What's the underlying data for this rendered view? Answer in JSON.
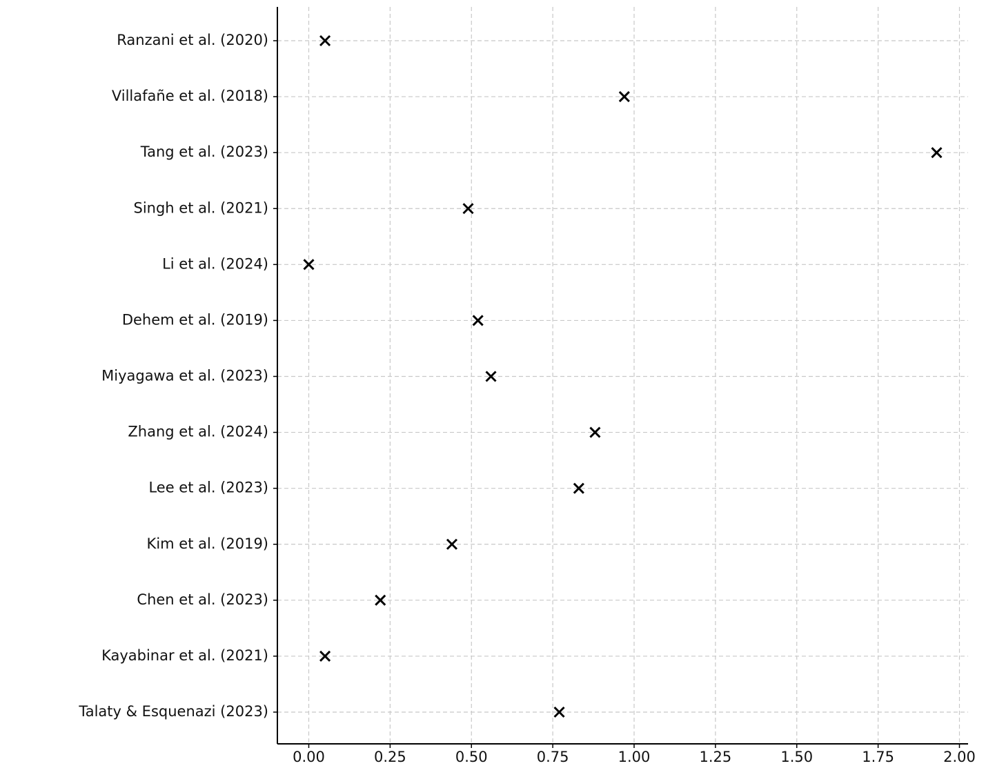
{
  "chart_data": {
    "type": "scatter",
    "categories": [
      "Ranzani et al. (2020)",
      "Villafañe et al. (2018)",
      "Tang et al. (2023)",
      "Singh et al. (2021)",
      "Li et al. (2024)",
      "Dehem et al. (2019)",
      "Miyagawa et al. (2023)",
      "Zhang et al. (2024)",
      "Lee et al. (2023)",
      "Kim et al. (2019)",
      "Chen et al. (2023)",
      "Kayabinar et al. (2021)",
      "Talaty & Esquenazi (2023)"
    ],
    "values": [
      0.05,
      0.97,
      1.93,
      0.49,
      0.0,
      0.52,
      0.56,
      0.88,
      0.83,
      0.44,
      0.22,
      0.05,
      0.77
    ],
    "color": "#000000",
    "marker": "x",
    "xlim": [
      -0.0965,
      2.0265
    ],
    "xticks": [
      {
        "value": 0,
        "label": "0.00"
      },
      {
        "value": 0.25,
        "label": "0.25"
      },
      {
        "value": 0.5,
        "label": "0.50"
      },
      {
        "value": 0.75,
        "label": "0.75"
      },
      {
        "value": 1,
        "label": "1.00"
      },
      {
        "value": 1.25,
        "label": "1.25"
      },
      {
        "value": 1.5,
        "label": "1.50"
      },
      {
        "value": 1.75,
        "label": "1.75"
      },
      {
        "value": 2,
        "label": "2.00"
      }
    ],
    "grid": true
  }
}
